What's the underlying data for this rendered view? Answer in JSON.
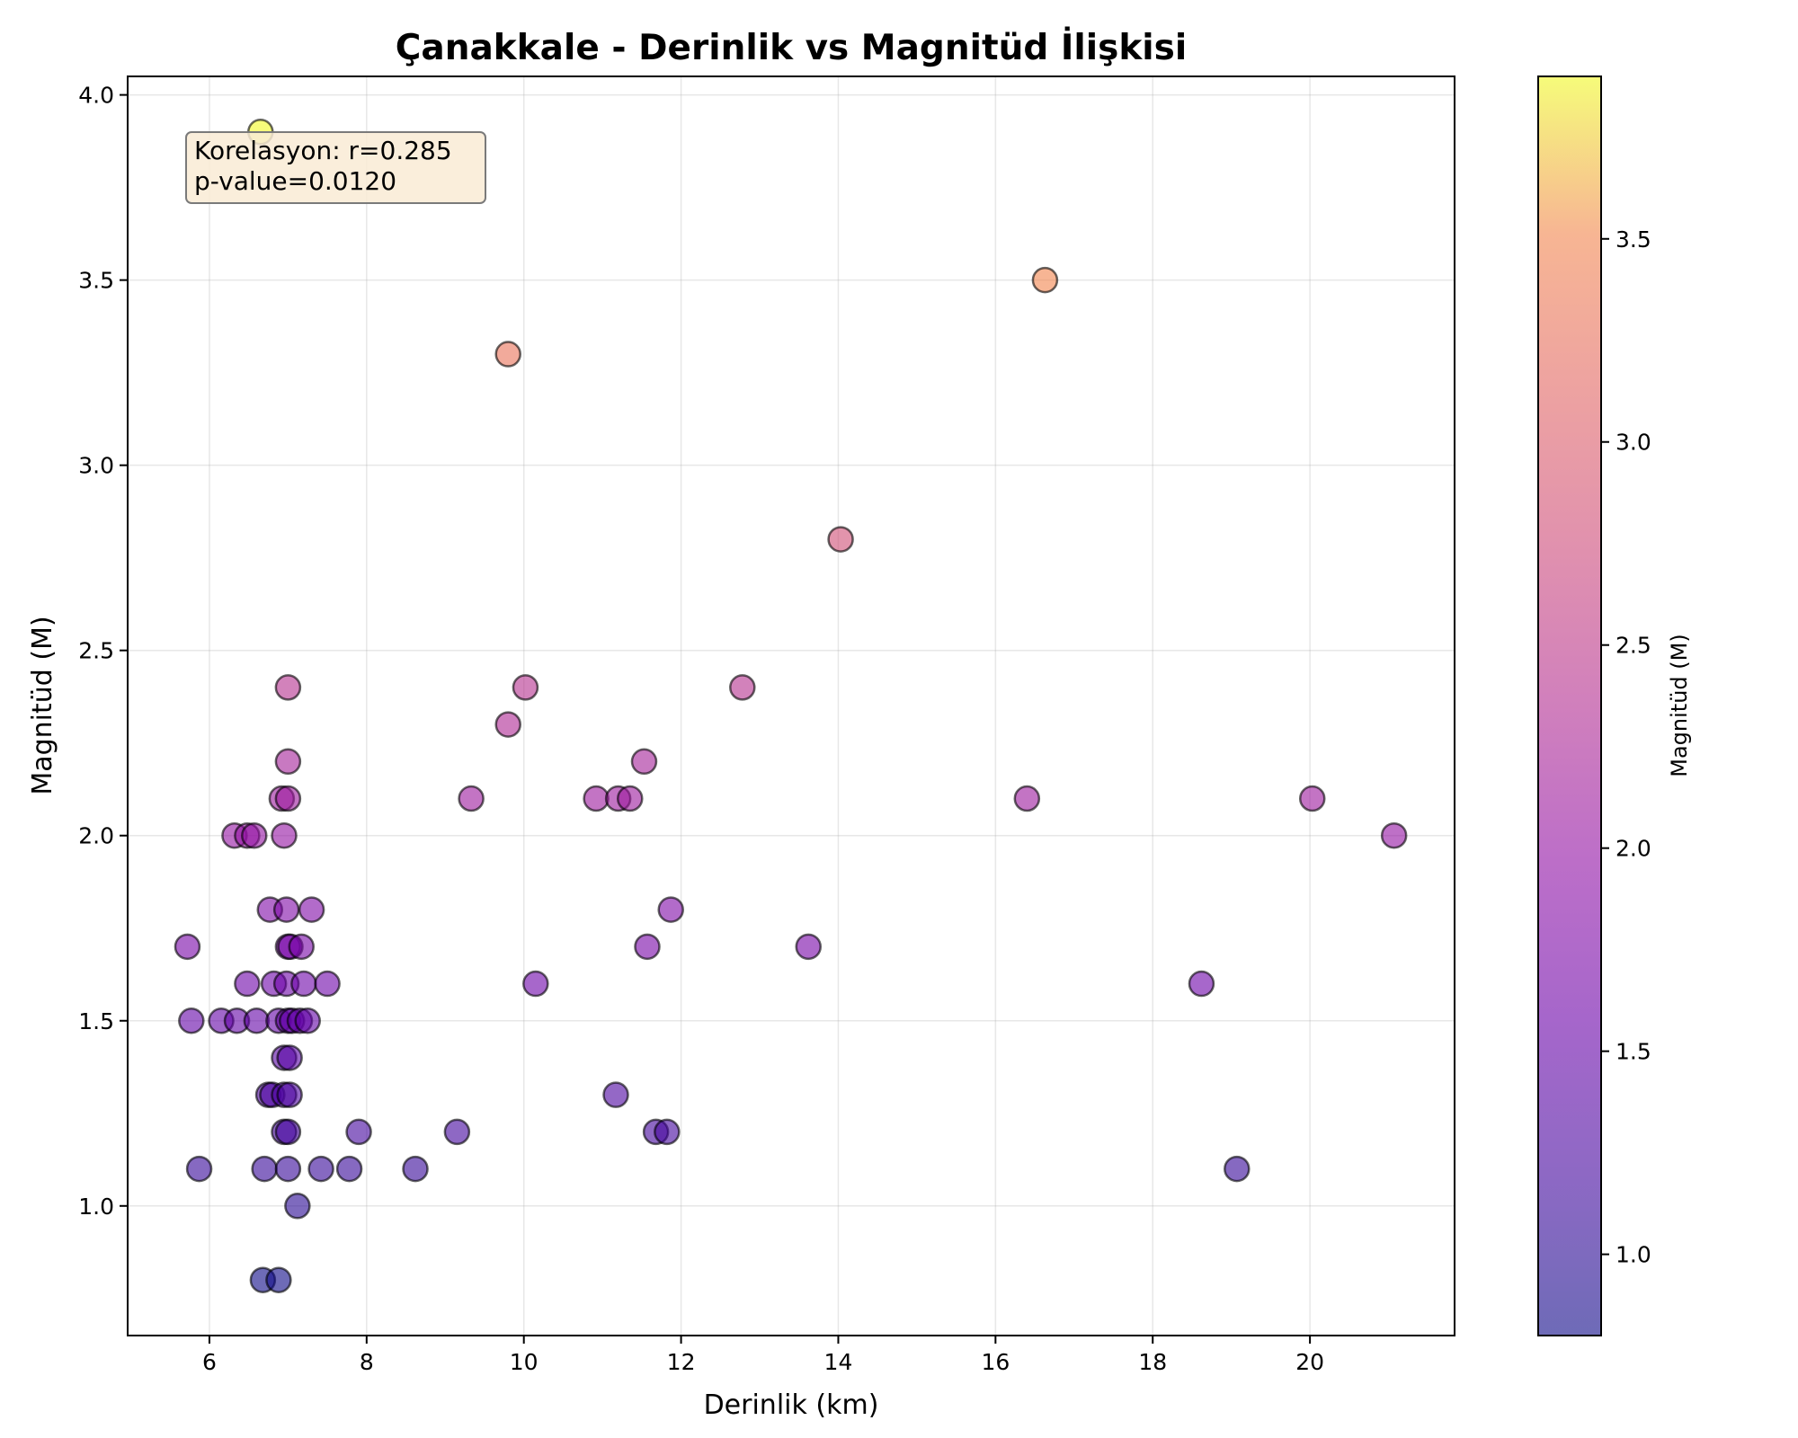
{
  "chart_data": {
    "type": "scatter",
    "title": "Çanakkale - Derinlik vs Magnitüd İlişkisi",
    "xlabel": "Derinlik (km)",
    "ylabel": "Magnitüd (M)",
    "xlim": [
      4.96,
      21.84
    ],
    "ylim": [
      0.65,
      4.05
    ],
    "xticks": [
      6,
      8,
      10,
      12,
      14,
      16,
      18,
      20
    ],
    "yticks": [
      1.0,
      1.5,
      2.0,
      2.5,
      3.0,
      3.5,
      4.0
    ],
    "xtick_labels": [
      "6",
      "8",
      "10",
      "12",
      "14",
      "16",
      "18",
      "20"
    ],
    "ytick_labels": [
      "1.0",
      "1.5",
      "2.0",
      "2.5",
      "3.0",
      "3.5",
      "4.0"
    ],
    "grid": true,
    "colormap": "plasma",
    "colorbar": {
      "label": "Magnitüd (M)",
      "range": [
        0.8,
        3.9
      ],
      "ticks": [
        1.0,
        1.5,
        2.0,
        2.5,
        3.0,
        3.5
      ],
      "tick_labels": [
        "1.0",
        "1.5",
        "2.0",
        "2.5",
        "3.0",
        "3.5"
      ]
    },
    "annotation": {
      "line1": "Korelasyon: r=0.285",
      "line2": "p-value=0.0120"
    },
    "x": [
      6.65,
      9.8,
      16.63,
      14.03,
      12.78,
      7.0,
      10.02,
      9.8,
      7.0,
      11.53,
      6.92,
      7.0,
      9.33,
      10.92,
      11.2,
      11.35,
      16.4,
      20.03,
      6.32,
      6.48,
      6.57,
      6.95,
      21.07,
      5.72,
      6.77,
      6.98,
      7.3,
      11.87,
      13.62,
      7.0,
      7.03,
      7.17,
      11.57,
      6.48,
      6.82,
      6.98,
      7.2,
      7.5,
      10.15,
      18.62,
      5.77,
      6.15,
      6.35,
      6.6,
      6.88,
      7.0,
      7.05,
      7.15,
      7.25,
      6.95,
      7.02,
      6.75,
      6.8,
      6.95,
      7.02,
      11.17,
      6.95,
      7.0,
      7.9,
      9.15,
      11.68,
      11.82,
      5.87,
      6.7,
      7.0,
      7.42,
      7.78,
      8.62,
      19.07,
      7.12,
      6.68,
      6.88
    ],
    "y": [
      3.9,
      3.3,
      3.5,
      2.8,
      2.4,
      2.4,
      2.4,
      2.3,
      2.2,
      2.2,
      2.1,
      2.1,
      2.1,
      2.1,
      2.1,
      2.1,
      2.1,
      2.1,
      2.0,
      2.0,
      2.0,
      2.0,
      2.0,
      1.7,
      1.8,
      1.8,
      1.8,
      1.8,
      1.7,
      1.7,
      1.7,
      1.7,
      1.7,
      1.6,
      1.6,
      1.6,
      1.6,
      1.6,
      1.6,
      1.6,
      1.5,
      1.5,
      1.5,
      1.5,
      1.5,
      1.5,
      1.5,
      1.5,
      1.5,
      1.4,
      1.4,
      1.3,
      1.3,
      1.3,
      1.3,
      1.3,
      1.2,
      1.2,
      1.2,
      1.2,
      1.2,
      1.2,
      1.1,
      1.1,
      1.1,
      1.1,
      1.1,
      1.1,
      1.1,
      1.0,
      0.8,
      0.8
    ]
  }
}
